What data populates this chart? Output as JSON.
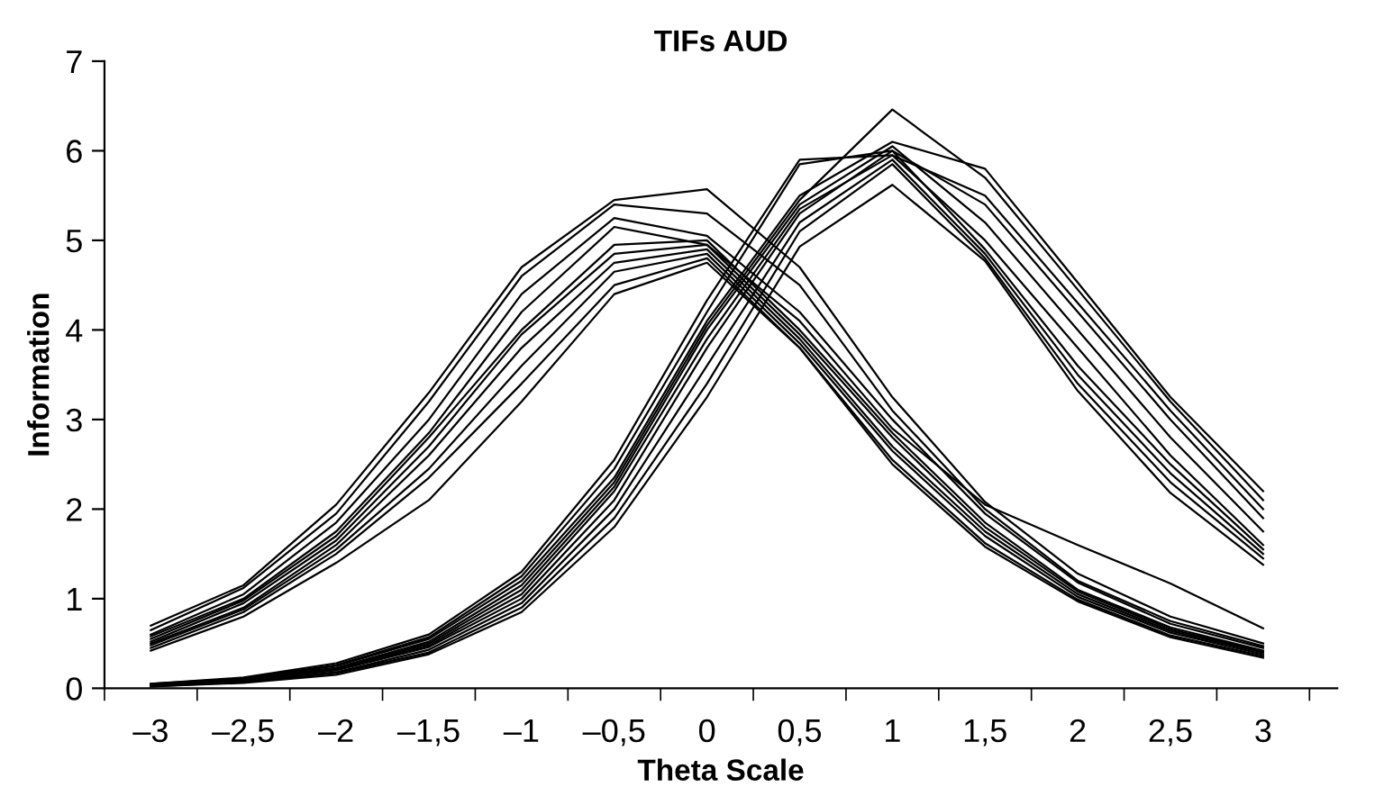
{
  "chart_data": {
    "type": "line",
    "title": "TIFs AUD",
    "xlabel": "Theta Scale",
    "ylabel": "Information",
    "categories": [
      "–3",
      "–2,5",
      "–2",
      "–1,5",
      "–1",
      "–0,5",
      "0",
      "0,5",
      "1",
      "1,5",
      "2",
      "2,5",
      "3"
    ],
    "ylim": [
      0,
      7
    ],
    "yticks": [
      0,
      1,
      2,
      3,
      4,
      5,
      6,
      7
    ],
    "grid": false,
    "marker": "none",
    "line_style": "solid",
    "series": [
      {
        "color": "#000000",
        "values": [
          0.7,
          1.15,
          2.05,
          3.3,
          4.7,
          5.45,
          5.57,
          4.7,
          3.25,
          2.08,
          1.28,
          0.8,
          0.5
        ]
      },
      {
        "color": "#000000",
        "values": [
          0.65,
          1.12,
          1.95,
          3.2,
          4.6,
          5.4,
          5.3,
          4.5,
          3.1,
          2.0,
          1.2,
          0.75,
          0.47
        ]
      },
      {
        "color": "#000000",
        "values": [
          0.6,
          1.05,
          1.85,
          3.0,
          4.4,
          5.25,
          5.05,
          4.2,
          3.0,
          1.95,
          1.18,
          0.72,
          0.45
        ]
      },
      {
        "color": "#000000",
        "values": [
          0.58,
          1.0,
          1.75,
          2.85,
          4.2,
          5.15,
          4.95,
          4.1,
          2.9,
          2.05,
          1.6,
          1.17,
          0.67
        ]
      },
      {
        "color": "#000000",
        "values": [
          0.55,
          0.98,
          1.7,
          2.8,
          4.0,
          4.95,
          5.0,
          4.0,
          2.85,
          1.85,
          1.1,
          0.68,
          0.42
        ]
      },
      {
        "color": "#000000",
        "values": [
          0.52,
          0.95,
          1.65,
          2.7,
          3.95,
          4.85,
          4.95,
          3.95,
          2.8,
          1.8,
          1.08,
          0.66,
          0.41
        ]
      },
      {
        "color": "#000000",
        "values": [
          0.5,
          0.9,
          1.6,
          2.6,
          3.8,
          4.75,
          4.9,
          3.9,
          2.7,
          1.75,
          1.05,
          0.64,
          0.4
        ]
      },
      {
        "color": "#000000",
        "values": [
          0.48,
          0.88,
          1.55,
          2.45,
          3.6,
          4.65,
          4.85,
          3.85,
          2.65,
          1.7,
          1.02,
          0.62,
          0.38
        ]
      },
      {
        "color": "#000000",
        "values": [
          0.45,
          0.85,
          1.5,
          2.35,
          3.4,
          4.5,
          4.8,
          3.8,
          2.55,
          1.62,
          0.99,
          0.59,
          0.36
        ]
      },
      {
        "color": "#000000",
        "values": [
          0.42,
          0.8,
          1.4,
          2.1,
          3.2,
          4.4,
          4.75,
          3.8,
          2.5,
          1.58,
          0.97,
          0.57,
          0.34
        ]
      },
      {
        "color": "#000000",
        "values": [
          0.05,
          0.12,
          0.28,
          0.6,
          1.3,
          2.55,
          4.33,
          5.9,
          5.95,
          5.5,
          4.3,
          3.1,
          2.0
        ]
      },
      {
        "color": "#000000",
        "values": [
          0.05,
          0.11,
          0.26,
          0.57,
          1.25,
          2.45,
          4.2,
          5.85,
          6.0,
          5.4,
          4.2,
          3.0,
          1.9
        ]
      },
      {
        "color": "#000000",
        "values": [
          0.04,
          0.1,
          0.25,
          0.55,
          1.2,
          2.35,
          4.1,
          5.5,
          6.1,
          5.8,
          4.53,
          3.25,
          2.2
        ]
      },
      {
        "color": "#000000",
        "values": [
          0.04,
          0.1,
          0.23,
          0.52,
          1.15,
          2.3,
          4.05,
          5.45,
          6.46,
          5.7,
          4.45,
          3.2,
          2.1
        ]
      },
      {
        "color": "#000000",
        "values": [
          0.04,
          0.09,
          0.22,
          0.5,
          1.1,
          2.25,
          4.0,
          5.4,
          6.05,
          5.2,
          4.0,
          2.8,
          1.75
        ]
      },
      {
        "color": "#000000",
        "values": [
          0.03,
          0.09,
          0.21,
          0.48,
          1.05,
          2.2,
          3.9,
          5.35,
          5.95,
          5.0,
          3.8,
          2.6,
          1.6
        ]
      },
      {
        "color": "#000000",
        "values": [
          0.03,
          0.08,
          0.2,
          0.46,
          1.0,
          2.1,
          3.8,
          5.3,
          6.0,
          4.9,
          3.6,
          2.5,
          1.55
        ]
      },
      {
        "color": "#000000",
        "values": [
          0.03,
          0.07,
          0.18,
          0.43,
          0.95,
          2.0,
          3.6,
          5.2,
          5.9,
          4.85,
          3.5,
          2.4,
          1.5
        ]
      },
      {
        "color": "#000000",
        "values": [
          0.02,
          0.07,
          0.17,
          0.4,
          0.9,
          1.9,
          3.4,
          5.1,
          5.85,
          4.8,
          3.4,
          2.3,
          1.45
        ]
      },
      {
        "color": "#000000",
        "values": [
          0.02,
          0.06,
          0.15,
          0.38,
          0.85,
          1.8,
          3.25,
          4.93,
          5.62,
          4.77,
          3.32,
          2.18,
          1.38
        ]
      }
    ]
  }
}
